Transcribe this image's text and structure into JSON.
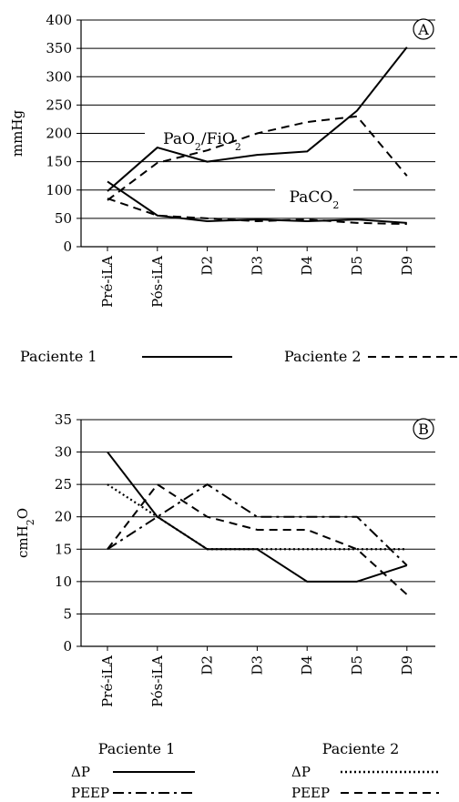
{
  "chart_data": [
    {
      "type": "line",
      "panel_label": "A",
      "ylabel": "mmHg",
      "ylim": [
        0,
        400
      ],
      "yticks": [
        0,
        50,
        100,
        150,
        200,
        250,
        300,
        350,
        400
      ],
      "grid": true,
      "categories": [
        "Pré-iLA",
        "Pós-iLA",
        "D2",
        "D3",
        "D4",
        "D5",
        "D9"
      ],
      "annotations": [
        {
          "base": "PaO",
          "sub": "2",
          "mid": "/FiO",
          "sub2": "2"
        },
        {
          "base": "PaCO",
          "sub": "2",
          "mid": "",
          "sub2": ""
        }
      ],
      "series": [
        {
          "name": "Paciente 1",
          "style": "solid",
          "measure": "PaO2/FiO2",
          "values": [
            98,
            175,
            150,
            162,
            168,
            240,
            352
          ]
        },
        {
          "name": "Paciente 2",
          "style": "dashed",
          "measure": "PaO2/FiO2",
          "values": [
            82,
            148,
            170,
            200,
            220,
            230,
            125
          ]
        },
        {
          "name": "Paciente 1",
          "style": "solid",
          "measure": "PaCO2",
          "values": [
            115,
            55,
            45,
            48,
            45,
            48,
            42
          ]
        },
        {
          "name": "Paciente 2",
          "style": "dashed",
          "measure": "PaCO2",
          "values": [
            85,
            55,
            50,
            45,
            48,
            42,
            40
          ]
        }
      ],
      "legend": [
        {
          "label": "Paciente 1",
          "style": "solid"
        },
        {
          "label": "Paciente 2",
          "style": "dashed"
        }
      ]
    },
    {
      "type": "line",
      "panel_label": "B",
      "ylabel": {
        "base": "cmH",
        "sub": "2",
        "tail": "O"
      },
      "ylim": [
        0,
        35
      ],
      "yticks": [
        0,
        5,
        10,
        15,
        20,
        25,
        30,
        35
      ],
      "grid": true,
      "categories": [
        "Pré-iLA",
        "Pós-iLA",
        "D2",
        "D3",
        "D4",
        "D5",
        "D9"
      ],
      "series": [
        {
          "name": "ΔP",
          "patient": "Paciente 1",
          "style": "solid",
          "values": [
            30,
            20,
            15,
            15,
            10,
            10,
            12.5
          ]
        },
        {
          "name": "PEEP",
          "patient": "Paciente 1",
          "style": "dashdot",
          "values": [
            15,
            20,
            25,
            20,
            20,
            20,
            12.5
          ]
        },
        {
          "name": "ΔP",
          "patient": "Paciente 2",
          "style": "dotted",
          "values": [
            25,
            20,
            15,
            15,
            15,
            15,
            15
          ]
        },
        {
          "name": "PEEP",
          "patient": "Paciente 2",
          "style": "dashed",
          "values": [
            15,
            25,
            20,
            18,
            18,
            15,
            8
          ]
        }
      ],
      "legend": {
        "groups": [
          {
            "title": "Paciente 1",
            "items": [
              {
                "label": "ΔP",
                "style": "solid"
              },
              {
                "label": "PEEP",
                "style": "dashdot"
              }
            ]
          },
          {
            "title": "Paciente 2",
            "items": [
              {
                "label": "ΔP",
                "style": "dotted"
              },
              {
                "label": "PEEP",
                "style": "dashed"
              }
            ]
          }
        ]
      }
    }
  ]
}
